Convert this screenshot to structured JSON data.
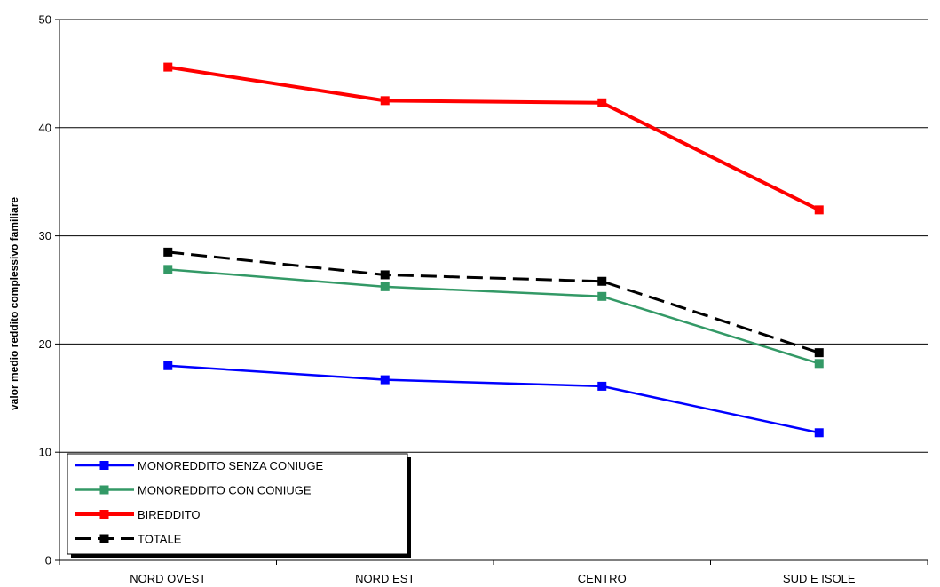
{
  "chart_data": {
    "type": "line",
    "categories": [
      "NORD OVEST",
      "NORD EST",
      "CENTRO",
      "SUD E ISOLE"
    ],
    "ylabel": "valor medio reddito complessivo familiare",
    "xlabel": "",
    "ylim": [
      0,
      50
    ],
    "yticks": [
      0,
      10,
      20,
      30,
      40,
      50
    ],
    "grid": true,
    "legend_position": "bottom-left",
    "series": [
      {
        "name": "MONOREDDITO SENZA CONIUGE",
        "values": [
          18.0,
          16.7,
          16.1,
          11.8
        ],
        "color": "#0000ff",
        "dashed": false
      },
      {
        "name": "MONOREDDITO CON CONIUGE",
        "values": [
          26.9,
          25.3,
          24.4,
          18.2
        ],
        "color": "#339966",
        "dashed": false
      },
      {
        "name": "BIREDDITO",
        "values": [
          45.6,
          42.5,
          42.3,
          32.4
        ],
        "color": "#ff0000",
        "dashed": false
      },
      {
        "name": "TOTALE",
        "values": [
          28.5,
          26.4,
          25.8,
          19.2
        ],
        "color": "#000000",
        "dashed": true
      }
    ]
  }
}
